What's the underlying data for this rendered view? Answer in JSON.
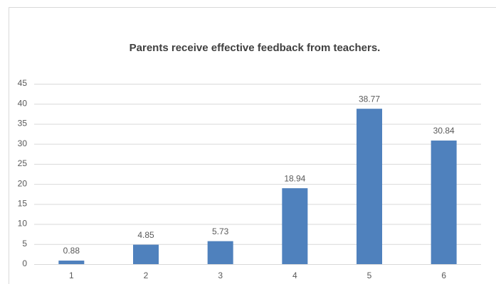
{
  "chart_data": {
    "type": "bar",
    "title": "Parents receive effective feedback from teachers.",
    "categories": [
      "1",
      "2",
      "3",
      "4",
      "5",
      "6"
    ],
    "values": [
      0.88,
      4.85,
      5.73,
      18.94,
      38.77,
      30.84
    ],
    "color": "#4f81bd",
    "ylim": [
      0,
      45
    ],
    "yticks": [
      0,
      5,
      10,
      15,
      20,
      25,
      30,
      35,
      40,
      45
    ],
    "grid": true
  }
}
